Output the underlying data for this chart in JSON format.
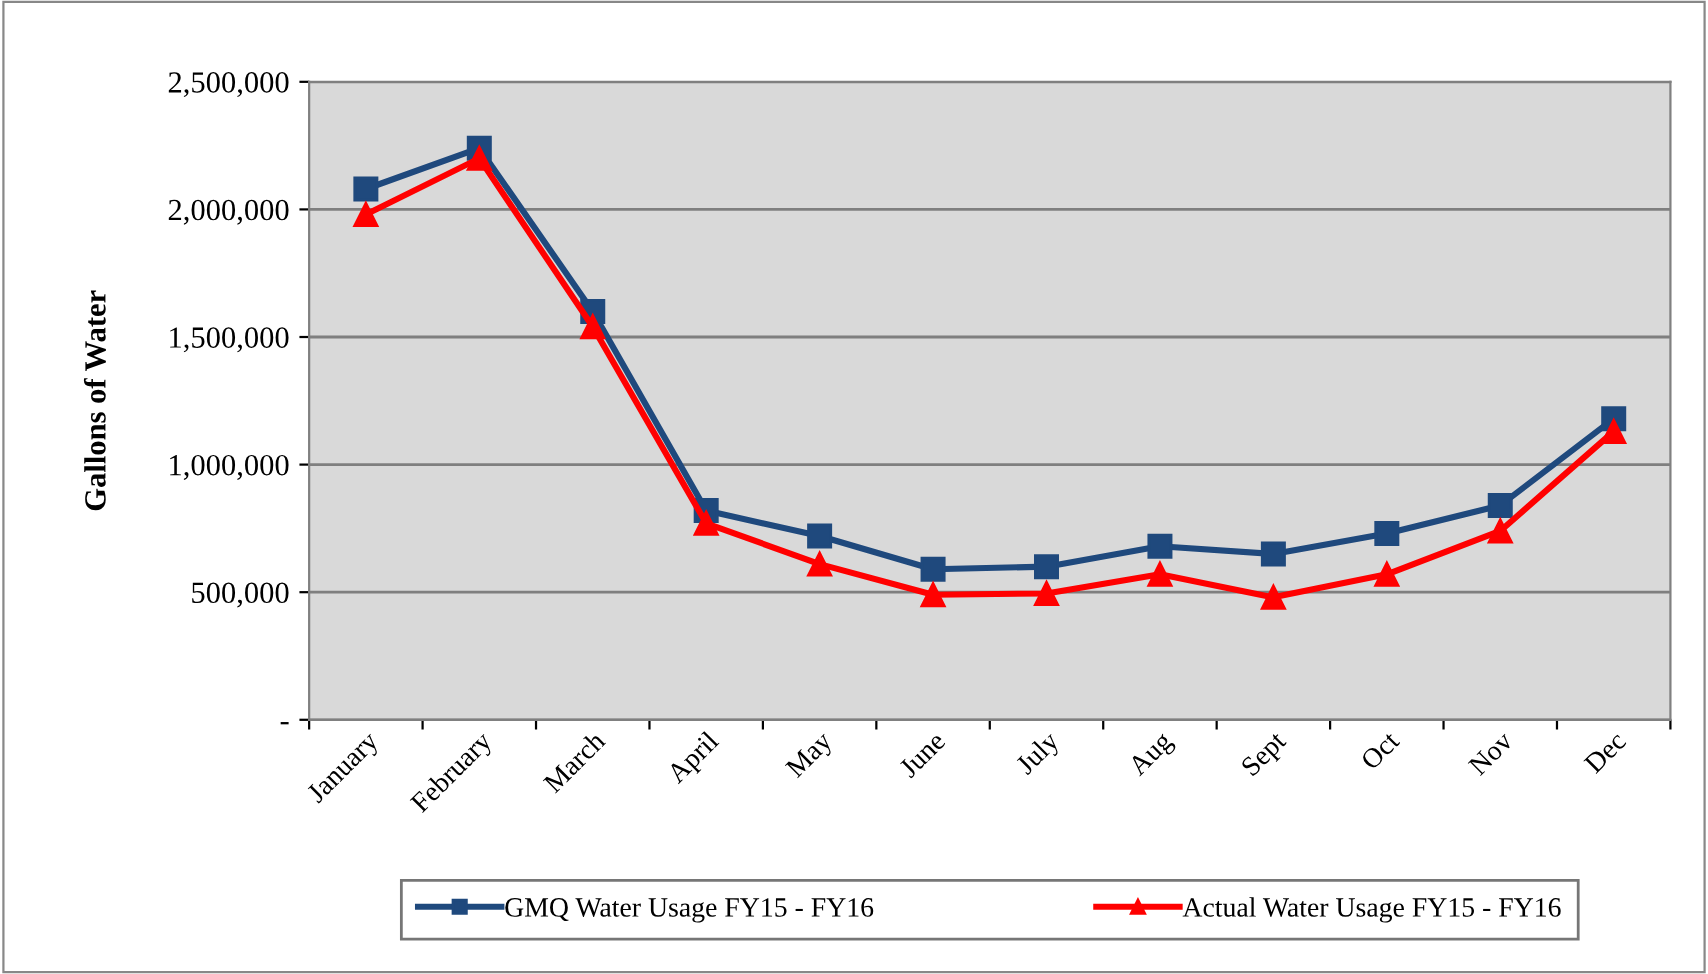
{
  "chart_data": {
    "type": "line",
    "ylabel": "Gallons of Water",
    "categories": [
      "January",
      "February",
      "March",
      "April",
      "May",
      "June",
      "July",
      "Aug",
      "Sept",
      "Oct",
      "Nov",
      "Dec"
    ],
    "series": [
      {
        "name": "GMQ Water Usage FY15 - FY16",
        "color": "#1f497d",
        "marker": "square",
        "values": [
          2080000,
          2240000,
          1600000,
          820000,
          720000,
          590000,
          600000,
          680000,
          650000,
          730000,
          840000,
          1180000
        ]
      },
      {
        "name": "Actual Water Usage FY15 - FY16",
        "color": "#ff0000",
        "marker": "triangle",
        "values": [
          1980000,
          2200000,
          1540000,
          770000,
          610000,
          490000,
          495000,
          570000,
          480000,
          570000,
          740000,
          1130000
        ]
      }
    ],
    "ylim": [
      0,
      2500000
    ],
    "yticks": [
      {
        "value": 0,
        "label": "-"
      },
      {
        "value": 500000,
        "label": "500,000"
      },
      {
        "value": 1000000,
        "label": "1,000,000"
      },
      {
        "value": 1500000,
        "label": "1,500,000"
      },
      {
        "value": 2000000,
        "label": "2,000,000"
      },
      {
        "value": 2500000,
        "label": "2,500,000"
      }
    ],
    "grid": "y",
    "legend": "bottom",
    "line_style": "solid"
  }
}
